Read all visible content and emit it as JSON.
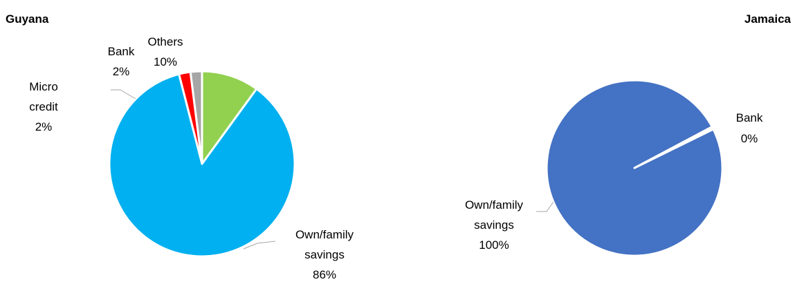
{
  "chart_data": [
    {
      "type": "pie",
      "title": "Guyana",
      "slices": [
        {
          "label": "Others",
          "value": 10,
          "display": "10%",
          "color": "#92d050"
        },
        {
          "label": "Own/family savings",
          "value": 86,
          "display": "86%",
          "color": "#00b0f0"
        },
        {
          "label": "Micro credit",
          "value": 2,
          "display": "2%",
          "color": "#ff0000"
        },
        {
          "label": "Bank",
          "value": 2,
          "display": "2%",
          "color": "#a6a6a6"
        }
      ]
    },
    {
      "type": "pie",
      "title": "Jamaica",
      "slices": [
        {
          "label": "Bank",
          "value": 0.5,
          "display": "0%",
          "color": "#ffffff"
        },
        {
          "label": "Own/family savings",
          "value": 99.5,
          "display": "100%",
          "color": "#4472c4"
        }
      ]
    }
  ]
}
